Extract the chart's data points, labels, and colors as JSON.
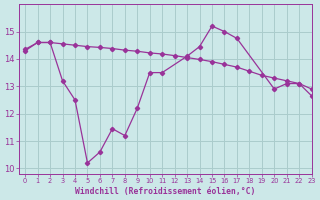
{
  "line1_x": [
    0,
    1,
    2,
    3,
    4,
    5,
    6,
    7,
    8,
    9,
    10,
    11,
    13,
    14,
    15,
    16,
    17,
    20,
    21,
    22,
    23
  ],
  "line1_y": [
    14.3,
    14.6,
    14.6,
    13.2,
    12.5,
    10.2,
    10.6,
    11.45,
    11.2,
    12.2,
    13.5,
    13.5,
    14.1,
    14.45,
    15.2,
    15.0,
    14.75,
    12.9,
    13.1,
    13.1,
    12.65
  ],
  "line2_x": [
    0,
    1,
    2,
    3,
    4,
    5,
    6,
    7,
    8,
    9,
    10,
    11,
    12,
    13,
    14,
    15,
    16,
    17,
    18,
    19,
    20,
    21,
    22,
    23
  ],
  "line2_y": [
    14.35,
    14.6,
    14.6,
    14.55,
    14.5,
    14.45,
    14.42,
    14.38,
    14.32,
    14.28,
    14.22,
    14.18,
    14.12,
    14.05,
    13.98,
    13.9,
    13.8,
    13.7,
    13.55,
    13.4,
    13.3,
    13.2,
    13.1,
    12.9
  ],
  "line_color": "#993399",
  "bg_color": "#cce8e8",
  "grid_color": "#aacccc",
  "xlabel": "Windchill (Refroidissement éolien,°C)",
  "ylim": [
    9.8,
    16.0
  ],
  "xlim": [
    -0.5,
    23
  ],
  "yticks": [
    10,
    11,
    12,
    13,
    14,
    15
  ],
  "xticks": [
    0,
    1,
    2,
    3,
    4,
    5,
    6,
    7,
    8,
    9,
    10,
    11,
    12,
    13,
    14,
    15,
    16,
    17,
    18,
    19,
    20,
    21,
    22,
    23
  ],
  "tick_color": "#993399",
  "label_color": "#993399"
}
